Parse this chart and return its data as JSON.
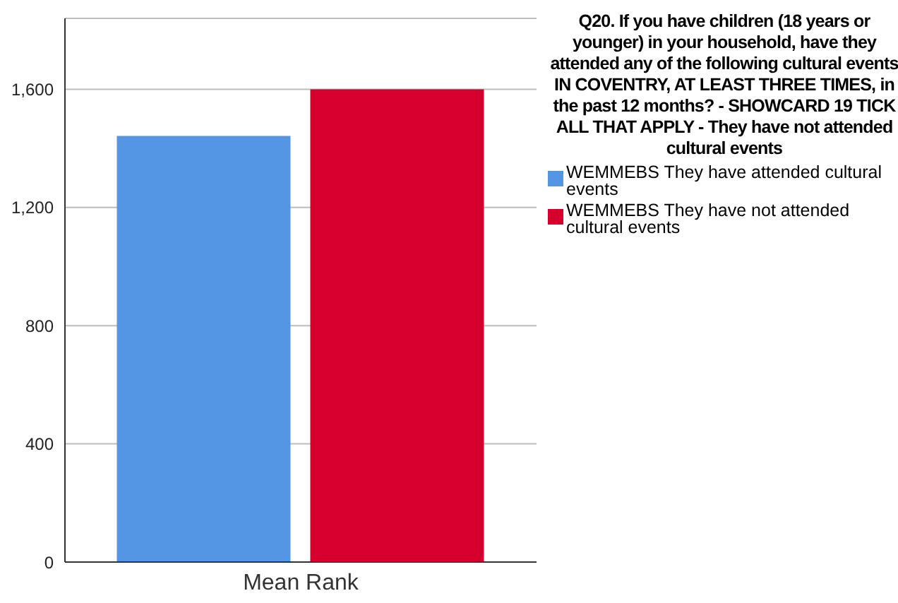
{
  "chart_data": {
    "type": "bar",
    "legend_title": "Q20. If you have children (18 years or younger) in your household, have they attended any of the following cultural events IN COVENTRY, AT LEAST THREE TIMES, in the past 12 months? - SHOWCARD 19 TICK ALL THAT APPLY - They have not attended cultural events",
    "categories": [
      "Mean Rank"
    ],
    "series": [
      {
        "name": "WEMMEBS They have attended cultural events",
        "color": "#5596e4",
        "values": [
          1442
        ]
      },
      {
        "name": "WEMMEBS They have not attended cultural events",
        "color": "#d6002f",
        "values": [
          1600
        ]
      }
    ],
    "ylim": [
      0,
      1840
    ],
    "yticks": [
      {
        "value": 0,
        "label": "0"
      },
      {
        "value": 400,
        "label": "400"
      },
      {
        "value": 800,
        "label": "800"
      },
      {
        "value": 1200,
        "label": "1,200"
      },
      {
        "value": 1600,
        "label": "1,600"
      }
    ],
    "grid": "y",
    "legend": "right"
  }
}
